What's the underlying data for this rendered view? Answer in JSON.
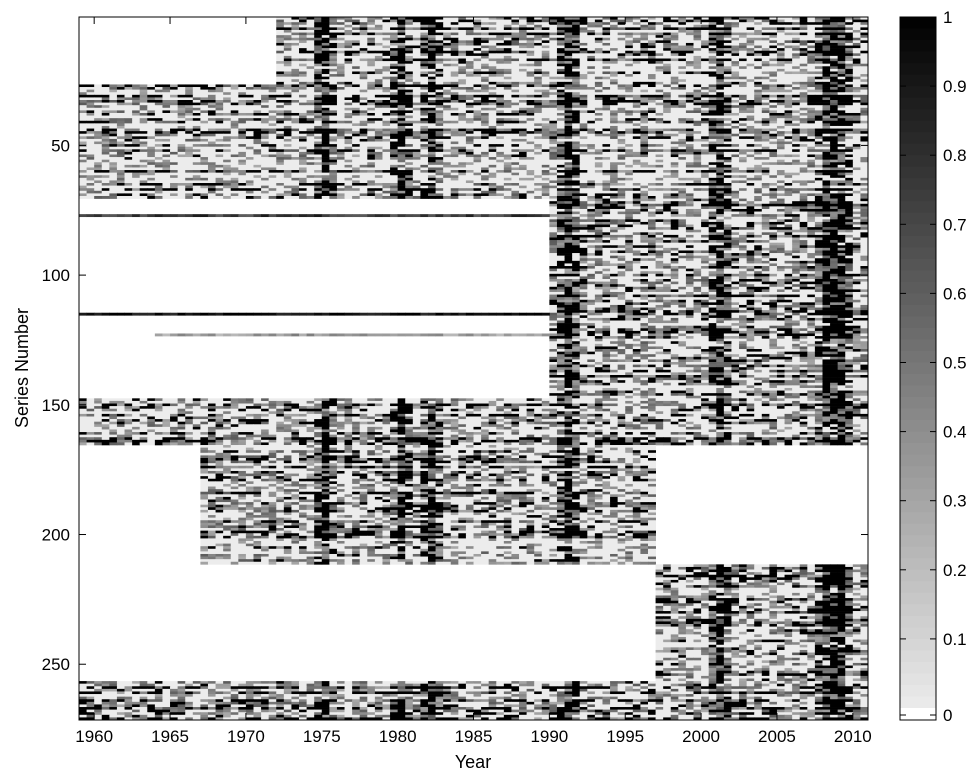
{
  "chart_data": {
    "type": "heatmap",
    "title": "",
    "xlabel": "Year",
    "ylabel": "Series Number",
    "xlim": [
      1959,
      2011
    ],
    "ylim": [
      1,
      271
    ],
    "y_direction": "top-to-bottom",
    "x_ticks": [
      "1960",
      "1965",
      "1970",
      "1975",
      "1980",
      "1985",
      "1990",
      "1995",
      "2000",
      "2005",
      "2010"
    ],
    "y_ticks": [
      "50",
      "100",
      "150",
      "200",
      "250"
    ],
    "colorbar": {
      "colormap": "gray-reversed",
      "min": 0,
      "max": 1,
      "ticks": [
        "1",
        "0.9",
        "0.8",
        "0.7",
        "0.6",
        "0.5",
        "0.4",
        "0.3",
        "0.2",
        "0.1",
        "0"
      ],
      "nan_color": "#ffffff"
    },
    "blocks": [
      {
        "series": [
          1,
          26
        ],
        "years": [
          1972,
          2011
        ]
      },
      {
        "series": [
          27,
          70
        ],
        "years": [
          1959,
          2011
        ]
      },
      {
        "series": [
          71,
          147
        ],
        "years": [
          1990,
          2011
        ]
      },
      {
        "series": [
          148,
          165
        ],
        "years": [
          1959,
          2011
        ]
      },
      {
        "series": [
          166,
          211
        ],
        "years": [
          1967,
          1997
        ]
      },
      {
        "series": [
          212,
          256
        ],
        "years": [
          1997,
          2011
        ]
      },
      {
        "series": [
          257,
          271
        ],
        "years": [
          1959,
          2011
        ]
      }
    ],
    "isolated_long_series": [
      {
        "series": 77,
        "years": [
          1959,
          1990
        ],
        "mean": 0.75
      },
      {
        "series": 115,
        "years": [
          1959,
          1990
        ],
        "mean": 0.95
      },
      {
        "series": 123,
        "years": [
          1964,
          1990
        ],
        "mean": 0.35
      }
    ],
    "high_activity_years": [
      1975,
      1980,
      1982,
      1991,
      2001,
      2008,
      2009
    ]
  }
}
